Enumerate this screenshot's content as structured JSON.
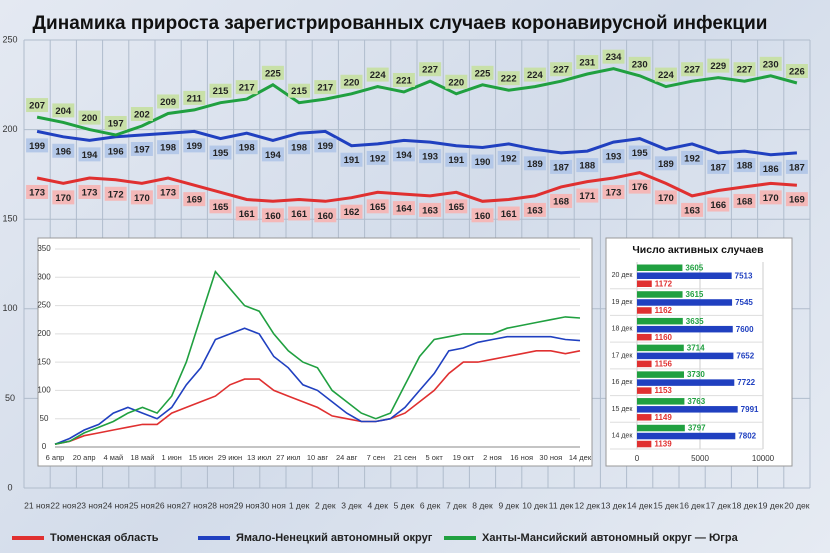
{
  "chart_data": [
    {
      "type": "line",
      "title": "Динамика прироста зарегистрированных случаев коронавирусной инфекции",
      "categories": [
        "21 ноя",
        "22 ноя",
        "23 ноя",
        "24 ноя",
        "25 ноя",
        "26 ноя",
        "27 ноя",
        "28 ноя",
        "29 ноя",
        "30 ноя",
        "1 дек",
        "2 дек",
        "3 дек",
        "4 дек",
        "5 дек",
        "6 дек",
        "7 дек",
        "8 дек",
        "9 дек",
        "10 дек",
        "11 дек",
        "12 дек",
        "13 дек",
        "14 дек",
        "15 дек",
        "16 дек",
        "17 дек",
        "18 дек",
        "19 дек",
        "20 дек"
      ],
      "ylim": [
        0,
        250
      ],
      "yticks": [
        0,
        50,
        100,
        150,
        200,
        250
      ],
      "grid": true,
      "series": [
        {
          "name": "Тюменская область",
          "color": "#e03030",
          "label_bg": "#f4b8b8",
          "values": [
            173,
            170,
            173,
            172,
            170,
            173,
            169,
            165,
            161,
            160,
            161,
            160,
            162,
            165,
            164,
            163,
            165,
            160,
            161,
            163,
            168,
            171,
            173,
            176,
            170,
            163,
            166,
            168,
            170,
            169
          ]
        },
        {
          "name": "Ямало-Ненецкий автономный округ",
          "color": "#2040c0",
          "label_bg": "#b4c8e8",
          "values": [
            199,
            196,
            194,
            196,
            197,
            198,
            199,
            195,
            198,
            194,
            198,
            199,
            191,
            192,
            194,
            193,
            191,
            190,
            192,
            189,
            187,
            188,
            193,
            195,
            189,
            192,
            187,
            188,
            186,
            187
          ]
        },
        {
          "name": "Ханты-Мансийский автономный округ — Югра",
          "color": "#20a040",
          "label_bg": "#c8e0a8",
          "values": [
            207,
            204,
            200,
            197,
            202,
            209,
            211,
            215,
            217,
            225,
            215,
            217,
            220,
            224,
            221,
            227,
            220,
            225,
            222,
            224,
            227,
            231,
            234,
            230,
            224,
            227,
            229,
            227,
            230,
            226
          ]
        }
      ]
    },
    {
      "type": "line",
      "categories": [
        "6 апр",
        null,
        "20 апр",
        null,
        "4 май",
        null,
        "18 май",
        null,
        "1 июн",
        null,
        "15 июн",
        null,
        "29 июн",
        null,
        "13 июл",
        null,
        "27 июл",
        null,
        "10 авг",
        null,
        "24 авг",
        null,
        "7 сен",
        null,
        "21 сен",
        null,
        "5 окт",
        null,
        "19 окт",
        null,
        "2 ноя",
        null,
        "16 ноя",
        null,
        "30 ноя",
        null,
        "14 дек"
      ],
      "ylim": [
        0,
        350
      ],
      "yticks": [
        0,
        50,
        100,
        150,
        200,
        250,
        300,
        350
      ],
      "grid": true,
      "series": [
        {
          "color": "#e03030",
          "values": [
            5,
            10,
            20,
            25,
            30,
            35,
            40,
            40,
            60,
            70,
            80,
            90,
            110,
            120,
            120,
            100,
            90,
            80,
            70,
            55,
            50,
            45,
            45,
            50,
            60,
            80,
            100,
            130,
            150,
            150,
            155,
            160,
            165,
            170,
            170,
            165,
            170
          ]
        },
        {
          "color": "#2040c0",
          "values": [
            5,
            15,
            30,
            40,
            60,
            70,
            60,
            50,
            70,
            110,
            140,
            190,
            200,
            210,
            200,
            160,
            140,
            110,
            100,
            80,
            60,
            45,
            45,
            50,
            70,
            100,
            130,
            170,
            175,
            185,
            190,
            195,
            195,
            195,
            195,
            190,
            188
          ]
        },
        {
          "color": "#20a040",
          "values": [
            5,
            10,
            25,
            35,
            45,
            60,
            70,
            60,
            90,
            150,
            230,
            310,
            280,
            250,
            240,
            200,
            170,
            150,
            140,
            100,
            80,
            60,
            50,
            60,
            110,
            160,
            190,
            195,
            200,
            200,
            200,
            210,
            215,
            220,
            225,
            230,
            228
          ]
        }
      ]
    },
    {
      "type": "barh",
      "title": "Число активных случаев",
      "categories": [
        "20 дек",
        "19 дек",
        "18 дек",
        "17 дек",
        "16 дек",
        "15 дек",
        "14 дек"
      ],
      "xlim": [
        0,
        10000
      ],
      "xticks": [
        0,
        5000,
        10000
      ],
      "series": [
        {
          "color": "#20a040",
          "values": [
            3605,
            3615,
            3635,
            3714,
            3730,
            3763,
            3797
          ]
        },
        {
          "color": "#2040c0",
          "values": [
            7513,
            7545,
            7600,
            7652,
            7722,
            7991,
            7802
          ]
        },
        {
          "color": "#e03030",
          "values": [
            1172,
            1162,
            1160,
            1156,
            1153,
            1149,
            1139
          ]
        }
      ]
    }
  ]
}
